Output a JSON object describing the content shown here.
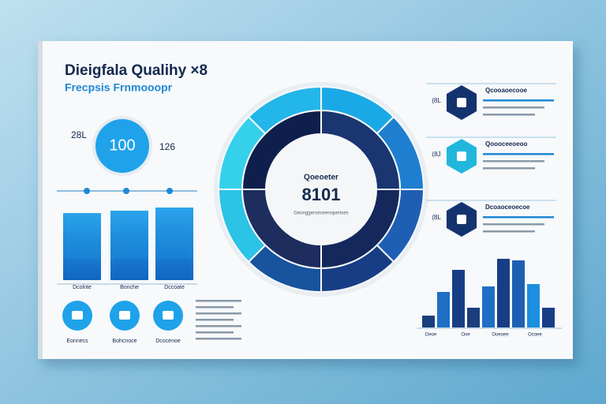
{
  "header": {
    "title": "Dieigfala Qualihy ×8",
    "subtitle": "Frecpsis Frnmooopr"
  },
  "badge": {
    "value": "100",
    "left_label": "28L",
    "right_label": "126"
  },
  "left_bars": {
    "values": [
      85,
      88,
      92
    ],
    "labels": [
      "Dcolnte",
      "Bonche",
      "Dccoate"
    ],
    "color": "#1c8fe0"
  },
  "icons": [
    {
      "label": "Eonnecs"
    },
    {
      "label": "Bohcnoce"
    },
    {
      "label": "Dcocenoe"
    }
  ],
  "donut": {
    "title": "Qoeoeter",
    "value": "8101",
    "caption": "Geonggeroeceenoperioes",
    "outer": {
      "values": [
        12.5,
        12.5,
        12.5,
        12.5,
        12.5,
        12.5,
        12.5,
        12.5
      ],
      "colors": [
        "#1aa9e6",
        "#1e7fd0",
        "#1f5fb3",
        "#173e85",
        "#18539e",
        "#2bc3e6",
        "#35d0ea",
        "#23b6e8"
      ]
    },
    "inner": {
      "values": [
        25,
        25,
        25,
        25
      ],
      "colors": [
        "#1a3570",
        "#14285c",
        "#1c2d5e",
        "#0f1f4d"
      ]
    }
  },
  "hex_items": [
    {
      "tag": "(8L",
      "heading": "Qcooaoecooe",
      "color": "#13336f"
    },
    {
      "tag": "(8J",
      "heading": "Qoooceeoeoo",
      "color": "#21b7dc"
    },
    {
      "tag": "(8L",
      "heading": "Dcoaoceoecoe",
      "color": "#13336f"
    }
  ],
  "right_bars": {
    "values": [
      15,
      45,
      73,
      25,
      52,
      87,
      85,
      55,
      25
    ],
    "colors": [
      "#1a3e7c",
      "#1e6fc4",
      "#173e85",
      "#1a3e7c",
      "#1e6fc4",
      "#173e85",
      "#1f5fb3",
      "#1c8fe0",
      "#173e85"
    ],
    "labels": [
      "Oeoe",
      "Ooe",
      "Ooeoee",
      "Ocoee"
    ]
  }
}
